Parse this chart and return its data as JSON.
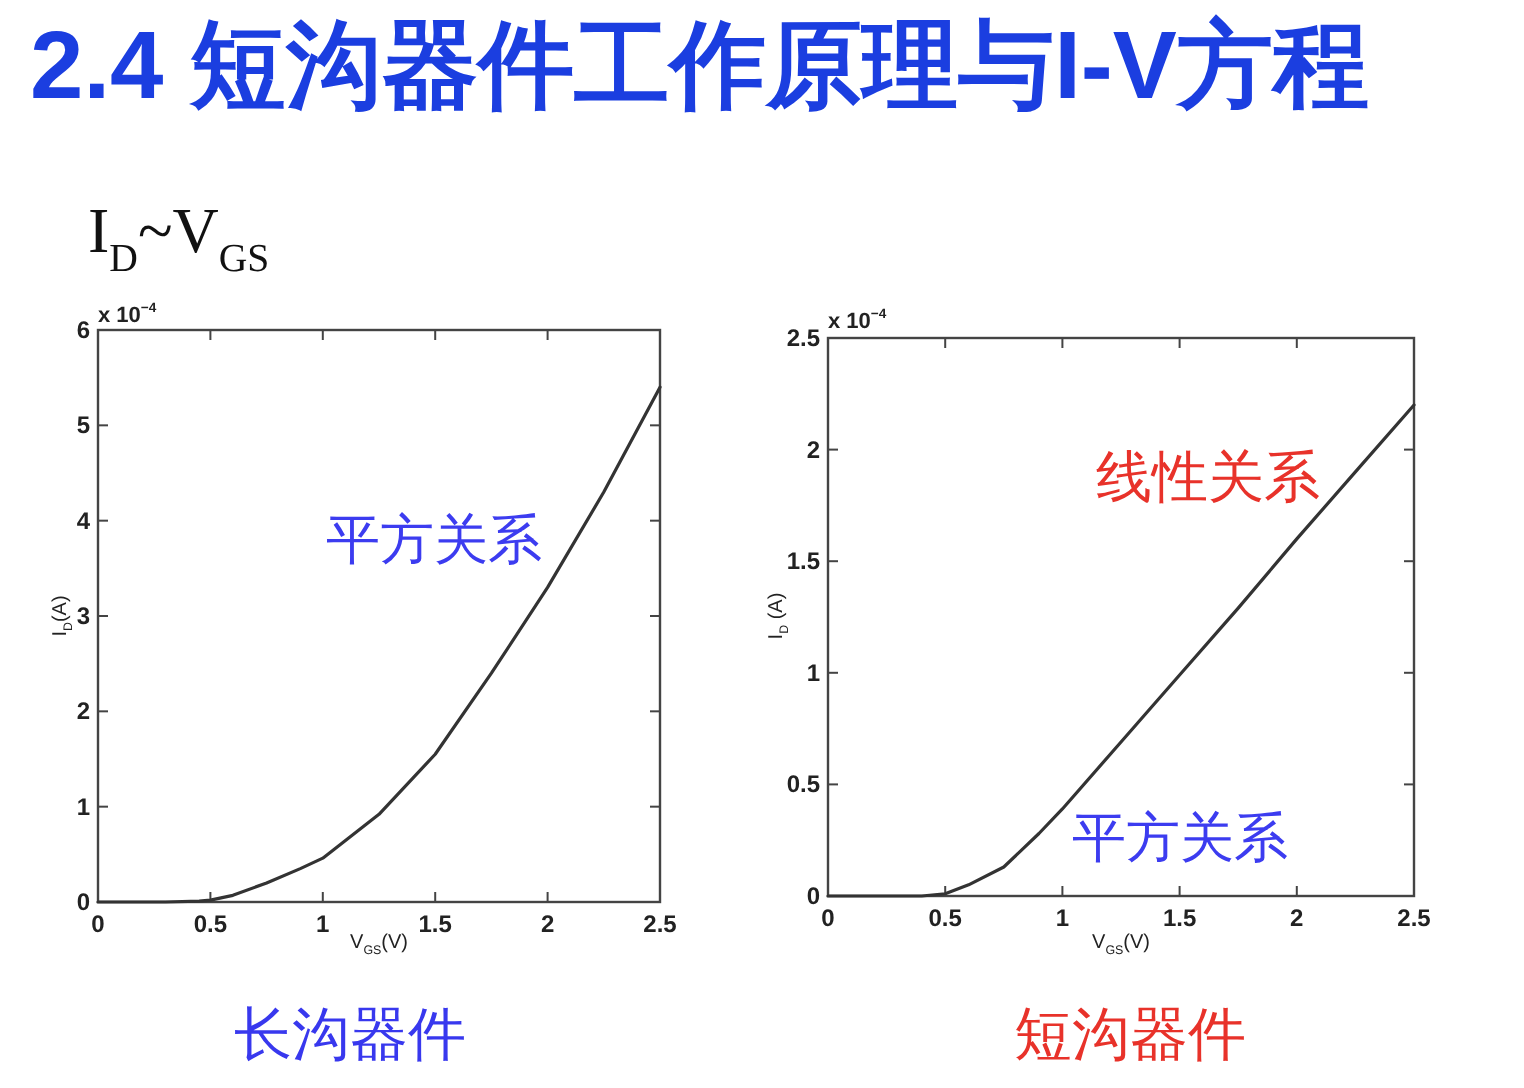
{
  "chart_data": [
    {
      "type": "line",
      "title": "2.4 短沟器件工作原理与I-V方程",
      "subtitle": "I$_{D}$~V$_{GS}$",
      "xlabel": "V$_{GS}$(V)",
      "ylabel": "I$_{D}$(A)",
      "x": [
        0,
        0.3,
        0.45,
        0.5,
        0.6,
        0.75,
        0.9,
        1,
        1.25,
        1.5,
        1.75,
        2,
        2.25,
        2.5
      ],
      "series": [
        {
          "color": "#333333",
          "values": [
            0,
            0,
            0.01,
            0.02,
            0.07,
            0.2,
            0.35,
            0.46,
            0.92,
            1.55,
            2.4,
            3.3,
            4.3,
            5.4
          ]
        }
      ],
      "xlim": [
        0,
        2.5
      ],
      "xticks": [
        0,
        0.5,
        1,
        1.5,
        2,
        2.5
      ],
      "ylim": [
        0,
        6
      ],
      "yticks": [
        0,
        1,
        2,
        3,
        4,
        5,
        6
      ],
      "annotations": [
        "x 10$^{−4}$",
        "平方关系",
        "长沟器件"
      ]
    },
    {
      "type": "line",
      "xlabel": "V$_{GS}$(V)",
      "ylabel": "I$_{D}$ (A)",
      "x": [
        0,
        0.3,
        0.4,
        0.5,
        0.6,
        0.75,
        0.9,
        1,
        1.25,
        1.5,
        1.75,
        2,
        2.25,
        2.5
      ],
      "series": [
        {
          "color": "#333333",
          "values": [
            0,
            0,
            0,
            0.01,
            0.05,
            0.13,
            0.28,
            0.39,
            0.69,
            0.99,
            1.29,
            1.6,
            1.9,
            2.2
          ]
        }
      ],
      "xlim": [
        0,
        2.5
      ],
      "xticks": [
        0,
        0.5,
        1,
        1.5,
        2,
        2.5
      ],
      "ylim": [
        0,
        2.5
      ],
      "yticks": [
        0,
        0.5,
        1,
        1.5,
        2,
        2.5
      ],
      "annotations": [
        "x 10$^{−4}$",
        "线性关系",
        "平方关系",
        "短沟器件"
      ]
    }
  ]
}
